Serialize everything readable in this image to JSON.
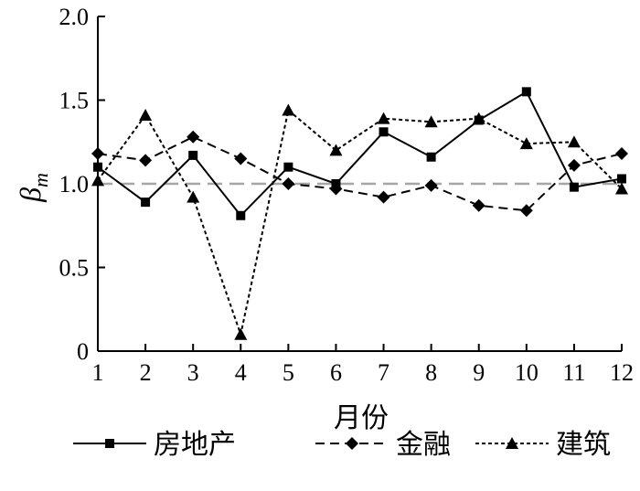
{
  "chart_data": {
    "type": "line",
    "title": "",
    "xlabel": "月份",
    "ylabel": {
      "base": "β",
      "sub": "m"
    },
    "x": [
      1,
      2,
      3,
      4,
      5,
      6,
      7,
      8,
      9,
      10,
      11,
      12
    ],
    "x_tick_labels": [
      "1",
      "2",
      "3",
      "4",
      "5",
      "6",
      "7",
      "8",
      "9",
      "10",
      "11",
      "12"
    ],
    "y_tick_labels": [
      "0",
      "0.5",
      "1.0",
      "1.5",
      "2.0"
    ],
    "y_ticks": [
      0,
      0.5,
      1.0,
      1.5,
      2.0
    ],
    "xlim": [
      1,
      12
    ],
    "ylim": [
      0,
      2.0
    ],
    "grid": false,
    "legend_position": "bottom",
    "reference_line": {
      "y": 1.0,
      "style": "dashed",
      "color": "#a6a6a6"
    },
    "series": [
      {
        "name": "房地产",
        "marker": "square",
        "line_style": "solid",
        "color": "#000000",
        "values": [
          1.1,
          0.89,
          1.17,
          0.81,
          1.1,
          1.0,
          1.31,
          1.16,
          1.38,
          1.55,
          0.98,
          1.03
        ]
      },
      {
        "name": "金融",
        "marker": "diamond",
        "line_style": "dashed",
        "color": "#000000",
        "values": [
          1.18,
          1.14,
          1.28,
          1.15,
          1.0,
          0.97,
          0.92,
          0.99,
          0.87,
          0.84,
          1.11,
          1.18
        ]
      },
      {
        "name": "建筑",
        "marker": "triangle",
        "line_style": "dotted",
        "color": "#000000",
        "values": [
          1.02,
          1.41,
          0.92,
          0.1,
          1.44,
          1.2,
          1.39,
          1.37,
          1.39,
          1.24,
          1.25,
          0.97
        ]
      }
    ]
  }
}
